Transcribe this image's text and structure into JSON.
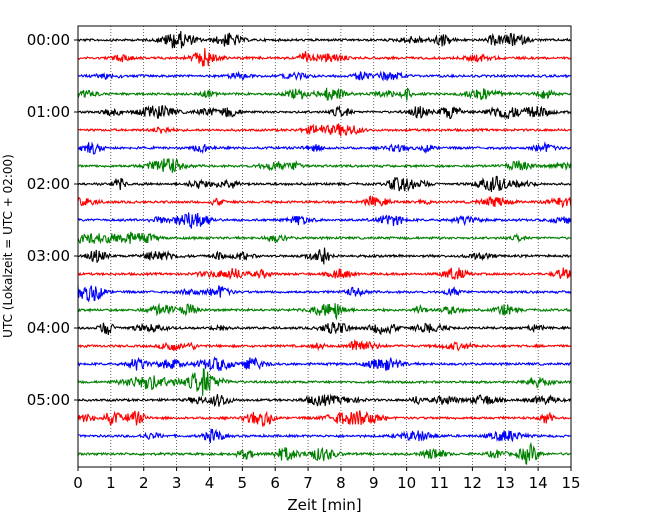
{
  "chart_data": {
    "type": "line",
    "title": "",
    "xlabel": "Zeit  [min]",
    "ylabel": "UTC (Lokalzeit = UTC + 02:00)",
    "xlim": [
      0,
      15
    ],
    "x_ticks": [
      0,
      1,
      2,
      3,
      4,
      5,
      6,
      7,
      8,
      9,
      10,
      11,
      12,
      13,
      14,
      15
    ],
    "grid": "vertical dotted lines at each minute",
    "hour_labels": [
      "00:00",
      "01:00",
      "02:00",
      "03:00",
      "04:00",
      "05:00"
    ],
    "traces_per_hour": 4,
    "trace_count": 24,
    "trace_minutes_per_line": 15,
    "trace_colors": [
      "#000000",
      "#ff0000",
      "#0000ff",
      "#008000"
    ],
    "legend": "none"
  }
}
